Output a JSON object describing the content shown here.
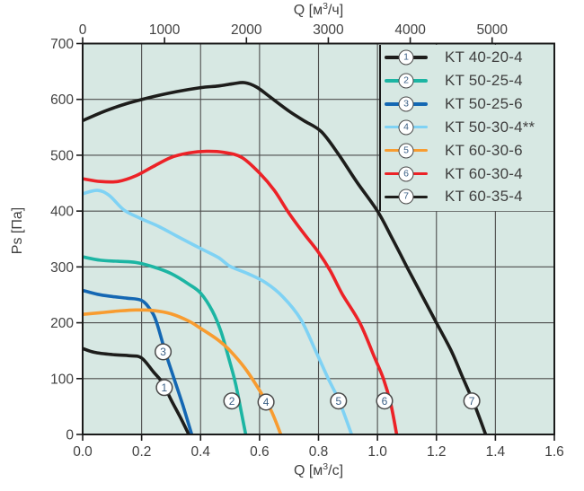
{
  "figure": {
    "background": "#ffffff",
    "plot_bg": "#d7e8e3",
    "grid_color": "#4d4d4d",
    "border_color": "#1a1a1a",
    "text_color": "#414141",
    "marker_circle_fill": "#ffffff",
    "marker_circle_stroke": "#4a4a4a",
    "marker_text_color": "#3a5f85"
  },
  "chart_data": {
    "type": "line",
    "title": "",
    "grid": true,
    "legend_position": "top-right",
    "y_axis": {
      "label": "Ps [Па]",
      "min": 0,
      "max": 700,
      "tick_labels": [
        "0",
        "100",
        "200",
        "300",
        "400",
        "500",
        "600",
        "700"
      ]
    },
    "x_axis_bottom": {
      "label_pre": "Q [м",
      "label_sup": "3",
      "label_post": "/с]",
      "min": 0,
      "max": 1.6,
      "tick_labels": [
        "0.0",
        "0.2",
        "0.4",
        "0.6",
        "0.8",
        "1.0",
        "1.2",
        "1.4",
        "1.6"
      ]
    },
    "x_axis_top": {
      "label_pre": "Q [м",
      "label_sup": "3",
      "label_post": "/ч]",
      "min": 0,
      "max_equivalent_bottom_units": 5760,
      "conversion": 3600,
      "tick_labels": [
        "0",
        "1000",
        "2000",
        "3000",
        "4000",
        "5000"
      ]
    },
    "series": [
      {
        "marker": "1",
        "label": "KT 40-20-4",
        "color": "#1d1d1b",
        "points": [
          [
            0,
            154
          ],
          [
            0.04,
            147
          ],
          [
            0.1,
            143
          ],
          [
            0.16,
            141
          ],
          [
            0.2,
            137
          ],
          [
            0.24,
            112
          ],
          [
            0.27,
            93
          ],
          [
            0.3,
            62
          ],
          [
            0.33,
            32
          ],
          [
            0.36,
            0
          ]
        ]
      },
      {
        "marker": "2",
        "label": "KT 50-25-4",
        "color": "#1cb5a3",
        "points": [
          [
            0,
            318
          ],
          [
            0.06,
            312
          ],
          [
            0.12,
            310
          ],
          [
            0.18,
            308
          ],
          [
            0.24,
            300
          ],
          [
            0.3,
            288
          ],
          [
            0.36,
            269
          ],
          [
            0.4,
            253
          ],
          [
            0.44,
            221
          ],
          [
            0.47,
            183
          ],
          [
            0.5,
            128
          ],
          [
            0.52,
            88
          ],
          [
            0.553,
            0
          ]
        ]
      },
      {
        "marker": "3",
        "label": "KT 50-25-6",
        "color": "#1467b3",
        "points": [
          [
            0,
            258
          ],
          [
            0.05,
            251
          ],
          [
            0.1,
            247
          ],
          [
            0.15,
            244
          ],
          [
            0.2,
            240
          ],
          [
            0.23,
            223
          ],
          [
            0.25,
            202
          ],
          [
            0.28,
            148
          ],
          [
            0.31,
            100
          ],
          [
            0.34,
            52
          ],
          [
            0.37,
            0
          ]
        ]
      },
      {
        "marker": "4",
        "label": "KT 50-30-4**",
        "color": "#7fd2f4",
        "points": [
          [
            0,
            431
          ],
          [
            0.05,
            437
          ],
          [
            0.09,
            428
          ],
          [
            0.14,
            402
          ],
          [
            0.2,
            386
          ],
          [
            0.26,
            372
          ],
          [
            0.32,
            355
          ],
          [
            0.4,
            333
          ],
          [
            0.46,
            317
          ],
          [
            0.5,
            301
          ],
          [
            0.56,
            288
          ],
          [
            0.62,
            272
          ],
          [
            0.68,
            246
          ],
          [
            0.74,
            206
          ],
          [
            0.79,
            150
          ],
          [
            0.833,
            100
          ],
          [
            0.87,
            60
          ],
          [
            0.912,
            0
          ]
        ]
      },
      {
        "marker": "5",
        "label": "KT 60-30-6",
        "color": "#f89c30",
        "points": [
          [
            0,
            215
          ],
          [
            0.06,
            218
          ],
          [
            0.12,
            221
          ],
          [
            0.18,
            223
          ],
          [
            0.24,
            222
          ],
          [
            0.3,
            216
          ],
          [
            0.36,
            203
          ],
          [
            0.4,
            190
          ],
          [
            0.46,
            169
          ],
          [
            0.5,
            150
          ],
          [
            0.55,
            119
          ],
          [
            0.6,
            79
          ],
          [
            0.64,
            42
          ],
          [
            0.672,
            0
          ]
        ]
      },
      {
        "marker": "6",
        "label": "KT 60-30-4",
        "color": "#ec2227",
        "points": [
          [
            0,
            458
          ],
          [
            0.06,
            453
          ],
          [
            0.12,
            453
          ],
          [
            0.18,
            463
          ],
          [
            0.24,
            480
          ],
          [
            0.3,
            496
          ],
          [
            0.36,
            504
          ],
          [
            0.42,
            507
          ],
          [
            0.48,
            505
          ],
          [
            0.54,
            496
          ],
          [
            0.6,
            468
          ],
          [
            0.65,
            437
          ],
          [
            0.7,
            396
          ],
          [
            0.75,
            360
          ],
          [
            0.8,
            326
          ],
          [
            0.84,
            293
          ],
          [
            0.88,
            252
          ],
          [
            0.94,
            200
          ],
          [
            0.99,
            138
          ],
          [
            1.02,
            100
          ],
          [
            1.045,
            55
          ],
          [
            1.065,
            0
          ]
        ]
      },
      {
        "marker": "7",
        "label": "KT 60-35-4",
        "color": "#1d1d1b",
        "points": [
          [
            0,
            562
          ],
          [
            0.08,
            580
          ],
          [
            0.16,
            594
          ],
          [
            0.24,
            605
          ],
          [
            0.32,
            614
          ],
          [
            0.4,
            621
          ],
          [
            0.46,
            624
          ],
          [
            0.51,
            628
          ],
          [
            0.55,
            630
          ],
          [
            0.59,
            622
          ],
          [
            0.634,
            605
          ],
          [
            0.7,
            579
          ],
          [
            0.75,
            562
          ],
          [
            0.81,
            542
          ],
          [
            0.87,
            500
          ],
          [
            0.93,
            452
          ],
          [
            1.0,
            400
          ],
          [
            1.05,
            351
          ],
          [
            1.1,
            300
          ],
          [
            1.15,
            250
          ],
          [
            1.2,
            200
          ],
          [
            1.25,
            150
          ],
          [
            1.29,
            101
          ],
          [
            1.33,
            52
          ],
          [
            1.367,
            0
          ]
        ]
      }
    ],
    "curve_labels": [
      {
        "n": "1",
        "q": 0.277,
        "ps": 84
      },
      {
        "n": "3",
        "q": 0.273,
        "ps": 148
      },
      {
        "n": "2",
        "q": 0.506,
        "ps": 60
      },
      {
        "n": "4",
        "q": 0.622,
        "ps": 58
      },
      {
        "n": "5",
        "q": 0.868,
        "ps": 60
      },
      {
        "n": "6",
        "q": 1.024,
        "ps": 60
      },
      {
        "n": "7",
        "q": 1.32,
        "ps": 60
      }
    ]
  }
}
